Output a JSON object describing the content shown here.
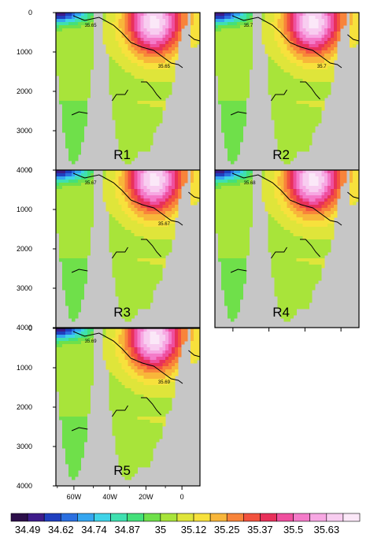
{
  "chart_data": [
    {
      "type": "heatmap",
      "panel_label": "R1",
      "x_ticks": [],
      "y_ticks": [
        "0",
        "1000",
        "2000",
        "3000",
        "4000"
      ],
      "ylim": [
        4000,
        0
      ],
      "contour_labels": [
        "35.65",
        "35.65"
      ]
    },
    {
      "type": "heatmap",
      "panel_label": "R2",
      "x_ticks": [],
      "y_ticks": [],
      "ylim": [
        4000,
        0
      ],
      "contour_labels": [
        "35.7",
        "35.7"
      ]
    },
    {
      "type": "heatmap",
      "panel_label": "R3",
      "x_ticks": [],
      "y_ticks": [
        "0",
        "1000",
        "2000",
        "3000",
        "4000"
      ],
      "ylim": [
        4000,
        0
      ],
      "contour_labels": [
        "35.67",
        "35.67"
      ]
    },
    {
      "type": "heatmap",
      "panel_label": "R4",
      "x_ticks": [],
      "y_ticks": [],
      "ylim": [
        4000,
        0
      ],
      "contour_labels": [
        "35.68"
      ]
    },
    {
      "type": "heatmap",
      "panel_label": "R5",
      "x_ticks": [
        "60W",
        "40W",
        "20W",
        "0"
      ],
      "y_ticks": [
        "0",
        "1000",
        "2000",
        "3000",
        "4000"
      ],
      "ylim": [
        4000,
        0
      ],
      "contour_labels": [
        "35.69",
        "35.69"
      ]
    }
  ],
  "colorbar": {
    "labels": [
      "34.49",
      "34.62",
      "34.74",
      "34.87",
      "35",
      "35.12",
      "35.25",
      "35.37",
      "35.5",
      "35.63"
    ],
    "colors": [
      "#2d0f4a",
      "#3e1c8a",
      "#1f3fbf",
      "#2b6fe0",
      "#35a6f0",
      "#3fd3e8",
      "#3fe0b0",
      "#44e07a",
      "#6fe04a",
      "#a8e43a",
      "#dfe53a",
      "#f7e13c",
      "#f8b63a",
      "#f8843a",
      "#f2523e",
      "#e8305a",
      "#ef4f9e",
      "#f47bc9",
      "#f7a8e3",
      "#f8cdf0",
      "#fbe8f8"
    ]
  }
}
